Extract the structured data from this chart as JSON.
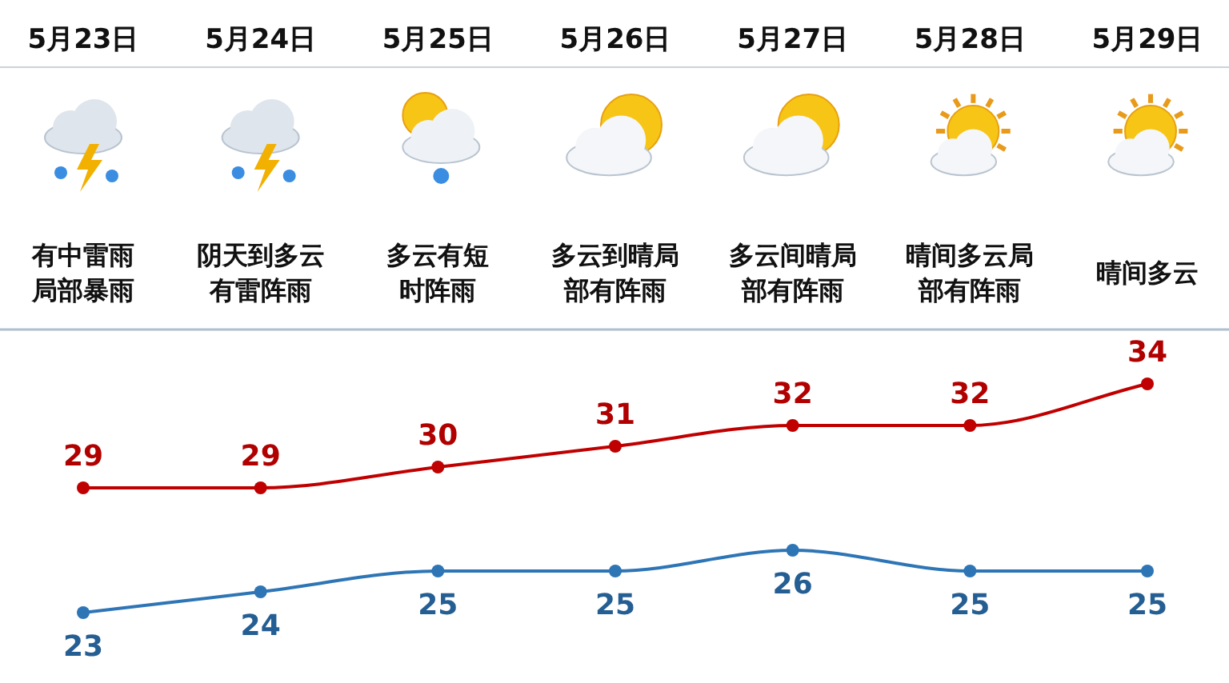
{
  "chart_data": {
    "type": "line",
    "categories": [
      "5月23日",
      "5月24日",
      "5月25日",
      "5月26日",
      "5月27日",
      "5月28日",
      "5月29日"
    ],
    "series": [
      {
        "color": "#c00000",
        "values": [
          29,
          29,
          30,
          31,
          32,
          32,
          34
        ]
      },
      {
        "color": "#2e75b6",
        "values": [
          23,
          24,
          25,
          25,
          26,
          25,
          25
        ]
      }
    ],
    "annotations": [
      "有中雷雨局部暴雨",
      "阴天到多云有雷阵雨",
      "多云有短时阵雨",
      "多云到晴局部有阵雨",
      "多云间晴局部有阵雨",
      "晴间多云局部有阵雨",
      "晴间多云"
    ],
    "data_labels": true,
    "marker": "circle",
    "grid": false
  }
}
